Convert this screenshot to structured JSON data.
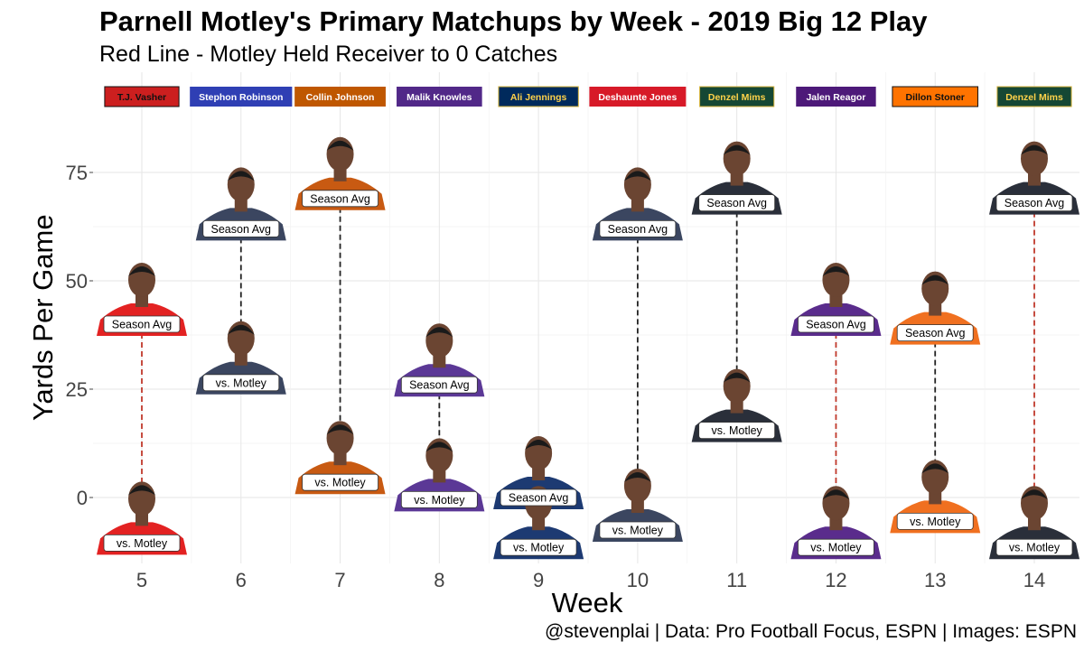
{
  "chart_data": {
    "type": "scatter",
    "title": "Parnell Motley's Primary Matchups by Week - 2019 Big 12 Play",
    "subtitle": "Red Line - Motley Held Receiver to 0 Catches",
    "xlabel": "Week",
    "ylabel": "Yards Per Game",
    "caption": "@stevenplai | Data: Pro Football Focus, ESPN | Images: ESPN",
    "ylim": [
      -15,
      93
    ],
    "yticks": [
      0,
      25,
      50,
      75
    ],
    "grid": true,
    "point_labels": {
      "season": "Season Avg",
      "motley": "vs. Motley"
    },
    "weeks": [
      {
        "week": "5",
        "receiver": "T.J. Vasher",
        "season_avg": 40,
        "vs_motley": -10.5,
        "held_to_zero": true,
        "team_color": "#cc1f1f",
        "name_color": "#111111",
        "jersey": "#e32222"
      },
      {
        "week": "6",
        "receiver": "Stephon Robinson",
        "season_avg": 62,
        "vs_motley": 26.5,
        "held_to_zero": false,
        "team_color": "#2f3fb4",
        "name_color": "#ffffff",
        "jersey": "#3b4660"
      },
      {
        "week": "7",
        "receiver": "Collin Johnson",
        "season_avg": 69,
        "vs_motley": 3.5,
        "held_to_zero": false,
        "team_color": "#bf5700",
        "name_color": "#ffffff",
        "jersey": "#c85a12"
      },
      {
        "week": "8",
        "receiver": "Malik Knowles",
        "season_avg": 26,
        "vs_motley": -0.5,
        "held_to_zero": false,
        "team_color": "#512888",
        "name_color": "#ffffff",
        "jersey": "#5b3896"
      },
      {
        "week": "9",
        "receiver": "Ali Jennings",
        "season_avg": 0,
        "vs_motley": -11.5,
        "held_to_zero": false,
        "team_color": "#002a5c",
        "name_color": "#ffd24a",
        "jersey": "#1d3a72"
      },
      {
        "week": "10",
        "receiver": "Deshaunte Jones",
        "season_avg": 62,
        "vs_motley": -7.5,
        "held_to_zero": false,
        "team_color": "#d71a28",
        "name_color": "#ffffff",
        "jersey": "#3b4660"
      },
      {
        "week": "11",
        "receiver": "Denzel Mims",
        "season_avg": 68,
        "vs_motley": 15.5,
        "held_to_zero": false,
        "team_color": "#154734",
        "name_color": "#ffd24a",
        "jersey": "#2a2f3a"
      },
      {
        "week": "12",
        "receiver": "Jalen Reagor",
        "season_avg": 40,
        "vs_motley": -11.5,
        "held_to_zero": true,
        "team_color": "#4d1979",
        "name_color": "#ffffff",
        "jersey": "#5a2c8c"
      },
      {
        "week": "13",
        "receiver": "Dillon Stoner",
        "season_avg": 38,
        "vs_motley": -5.5,
        "held_to_zero": false,
        "team_color": "#ff7300",
        "name_color": "#111111",
        "jersey": "#f07020"
      },
      {
        "week": "14",
        "receiver": "Denzel Mims",
        "season_avg": 68,
        "vs_motley": -11.5,
        "held_to_zero": true,
        "team_color": "#154734",
        "name_color": "#ffd24a",
        "jersey": "#2a2f3a"
      }
    ],
    "colors": {
      "red_line": "#c0392b",
      "black_line": "#222222",
      "grid": "#e6e6e6",
      "skin": "#6b4532"
    }
  }
}
